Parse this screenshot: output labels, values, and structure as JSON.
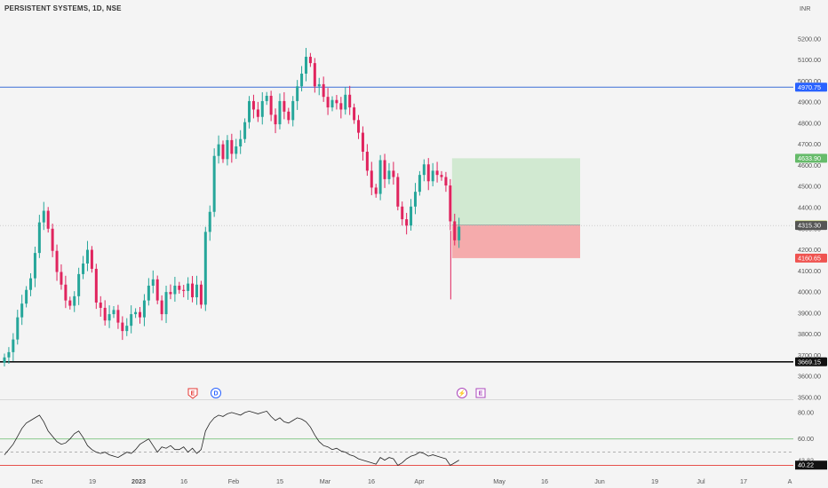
{
  "header": {
    "title": "PERSISTENT SYSTEMS, 1D, NSE",
    "currency": "INR"
  },
  "colors": {
    "up": "#26a69a",
    "down": "#e0245e",
    "support_line": "#111111",
    "resistance_line": "#3b6fd6",
    "target_zone": "#cfe8cf",
    "stop_zone": "#f4a6a8",
    "rsi_line": "#222222",
    "rsi_upper": "#66bb6a",
    "rsi_lower": "#e53935"
  },
  "chart_data": [
    {
      "type": "candlestick",
      "title": "PERSISTENT SYSTEMS, 1D, NSE",
      "ylim": [
        3500,
        5300
      ],
      "y_ticks": [
        "5200.00",
        "5100.00",
        "5000.00",
        "4900.00",
        "4800.00",
        "4700.00",
        "4600.00",
        "4500.00",
        "4400.00",
        "4300.00",
        "4200.00",
        "4100.00",
        "4000.00",
        "3900.00",
        "3800.00",
        "3700.00",
        "3600.00",
        "3500.00"
      ],
      "x_ticks": [
        "Dec",
        "19",
        "2023",
        "16",
        "Feb",
        "15",
        "Mar",
        "16",
        "Apr",
        "May",
        "16",
        "Jun",
        "19",
        "Jul",
        "17",
        "A"
      ],
      "closes": [
        3690,
        3715,
        3775,
        3880,
        3945,
        4010,
        4065,
        4185,
        4330,
        4385,
        4300,
        4195,
        4095,
        4035,
        3960,
        3935,
        3980,
        4085,
        4135,
        4200,
        4110,
        3950,
        3925,
        3865,
        3895,
        3915,
        3855,
        3815,
        3840,
        3895,
        3905,
        3880,
        3960,
        4030,
        4060,
        3960,
        3895,
        4000,
        3990,
        4030,
        4010,
        4005,
        4040,
        3975,
        4035,
        3940,
        4285,
        4380,
        4645,
        4700,
        4630,
        4720,
        4655,
        4690,
        4725,
        4805,
        4905,
        4865,
        4830,
        4905,
        4930,
        4840,
        4795,
        4905,
        4855,
        4815,
        4905,
        4975,
        5035,
        5115,
        5085,
        4975,
        4985,
        4925,
        4875,
        4910,
        4895,
        4865,
        4935,
        4875,
        4815,
        4755,
        4665,
        4575,
        4495,
        4465,
        4625,
        4535,
        4575,
        4545,
        4405,
        4345,
        4315,
        4405,
        4475,
        4555,
        4605,
        4525,
        4575,
        4555,
        4545,
        4505,
        4335,
        4245,
        4310
      ],
      "price_lines": {
        "resistance": {
          "value": 4970.75,
          "label": "4970.75"
        },
        "support": {
          "value": 3669.15,
          "label": "3669.15"
        },
        "target": {
          "value": 4633.9,
          "label": "4633.90"
        },
        "entry": {
          "value": 4317.4,
          "label": "4317.40"
        },
        "last": {
          "value": 4315.3,
          "label": "4315.30"
        },
        "stop": {
          "value": 4160.65,
          "label": "4160.65"
        }
      },
      "event_markers": [
        {
          "symbol": "E",
          "color": "#e53935",
          "shape": "pentagon"
        },
        {
          "symbol": "D",
          "color": "#2962ff",
          "shape": "circle"
        },
        {
          "symbol": "⚡",
          "color": "#ab47bc",
          "shape": "circle"
        },
        {
          "symbol": "E",
          "color": "#ab47bc",
          "shape": "square"
        }
      ]
    },
    {
      "type": "line",
      "name": "RSI",
      "ylim": [
        35,
        88
      ],
      "y_ticks": [
        "80.00",
        "60.00"
      ],
      "levels": {
        "upper": 60,
        "mid_dashed": 50,
        "lower": 40
      },
      "current_values": [
        {
          "value": 43.82,
          "label": "43.82"
        },
        {
          "value": 40.22,
          "label": "40.22"
        }
      ],
      "values": [
        48,
        52,
        56,
        62,
        68,
        72,
        74,
        76,
        78,
        73,
        66,
        62,
        58,
        56,
        57,
        60,
        64,
        66,
        61,
        55,
        52,
        50,
        49,
        50,
        48,
        47,
        46,
        48,
        50,
        49,
        52,
        56,
        58,
        60,
        55,
        50,
        54,
        53,
        55,
        52,
        52,
        54,
        50,
        53,
        49,
        52,
        66,
        72,
        76,
        78,
        77,
        79,
        80,
        79,
        78,
        80,
        81,
        80,
        79,
        80,
        81,
        77,
        74,
        76,
        73,
        72,
        74,
        76,
        75,
        73,
        69,
        63,
        58,
        55,
        54,
        52,
        53,
        51,
        50,
        48,
        47,
        45,
        44,
        43,
        42,
        41,
        46,
        44,
        46,
        45,
        40,
        42,
        45,
        47,
        48,
        50,
        49,
        47,
        48,
        47,
        46,
        45,
        40,
        42,
        44
      ]
    }
  ]
}
